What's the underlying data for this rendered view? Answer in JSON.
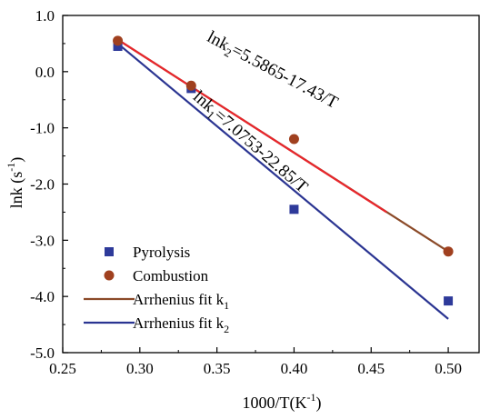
{
  "chart_data": {
    "type": "scatter",
    "xlabel_main": "1000/T(K",
    "xlabel_sup": "-1",
    "xlabel_end": ")",
    "ylabel_main": "lnk (s",
    "ylabel_sup": "-1",
    "ylabel_end": ")",
    "xlim": [
      0.25,
      0.52
    ],
    "ylim": [
      -5.0,
      1.0
    ],
    "xticks": [
      0.25,
      0.3,
      0.35,
      0.4,
      0.45,
      0.5
    ],
    "xtick_labels": [
      "0.25",
      "0.30",
      "0.35",
      "0.40",
      "0.45",
      "0.50"
    ],
    "yticks": [
      1.0,
      0.0,
      -1.0,
      -2.0,
      -3.0,
      -4.0,
      -5.0
    ],
    "ytick_labels": [
      "1.0",
      "0.0",
      "-1.0",
      "-2.0",
      "-3.0",
      "-4.0",
      "-5.0"
    ],
    "grid": false,
    "legend_position": "bottom-left",
    "series": [
      {
        "name": "Pyrolysis",
        "kind": "scatter",
        "marker": "square",
        "color": "#2e3a9a",
        "x": [
          0.2857,
          0.3333,
          0.4,
          0.5
        ],
        "y": [
          0.45,
          -0.3,
          -2.45,
          -4.08
        ]
      },
      {
        "name": "Combustion",
        "kind": "scatter",
        "marker": "circle",
        "color": "#a0401f",
        "x": [
          0.2857,
          0.3333,
          0.4,
          0.5
        ],
        "y": [
          0.55,
          -0.25,
          -1.2,
          -3.2
        ]
      },
      {
        "name": "Arrhenius fit k",
        "subscript": "1",
        "kind": "line",
        "color": "#8b4a28",
        "x": [
          0.2857,
          0.5
        ],
        "y": [
          0.57,
          -3.2
        ]
      },
      {
        "name": "Arrhenius fit k",
        "subscript": "2",
        "kind": "line",
        "color": "#2b3592",
        "x": [
          0.2857,
          0.5
        ],
        "y": [
          0.5,
          -4.4
        ]
      }
    ],
    "overlay_lines": [
      {
        "color": "#e8262c",
        "x": [
          0.2857,
          0.46
        ],
        "y": [
          0.57,
          -2.5
        ]
      }
    ],
    "annotations": [
      {
        "parts": [
          "lnk",
          "2",
          "=5.5865-17.43/T"
        ],
        "color": "#e8262c",
        "anchor": [
          0.3845,
          -0.05
        ],
        "angle": 28
      },
      {
        "parts": [
          "lnk",
          "1",
          "=7.0753-22.85/T"
        ],
        "color": "#2b3592",
        "anchor": [
          0.3695,
          -1.32
        ],
        "angle": 41
      }
    ]
  }
}
